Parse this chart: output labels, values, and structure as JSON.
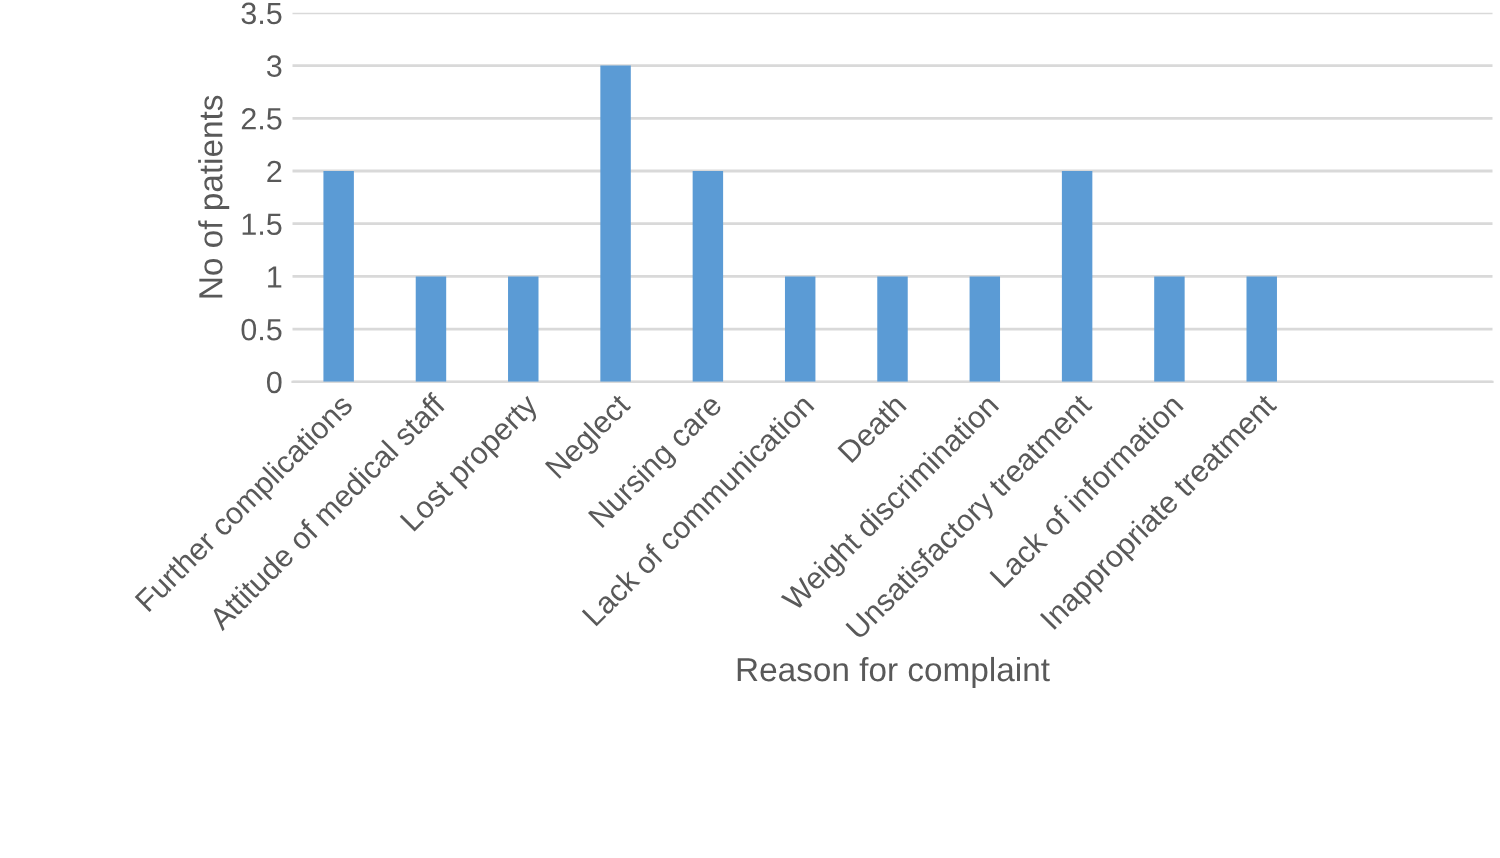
{
  "chart_data": {
    "type": "bar",
    "xlabel": "Reason for complaint",
    "ylabel": "No of patients",
    "categories": [
      "Further complications",
      "Attitude of medical staff",
      "Lost property",
      "Neglect",
      "Nursing care",
      "Lack of communication",
      "Death",
      "Weight discrimination",
      "Unsatisfactory treatment",
      "Lack of information",
      "Inappropriate treatment",
      null,
      null
    ],
    "values": [
      2,
      1,
      1,
      3,
      2,
      1,
      1,
      1,
      2,
      1,
      1,
      null,
      null
    ],
    "color": "#5b9bd5",
    "ylim": [
      0,
      3.5
    ],
    "yticks": [
      0,
      0.5,
      1,
      1.5,
      2,
      2.5,
      3,
      3.5
    ],
    "grid": "y"
  }
}
